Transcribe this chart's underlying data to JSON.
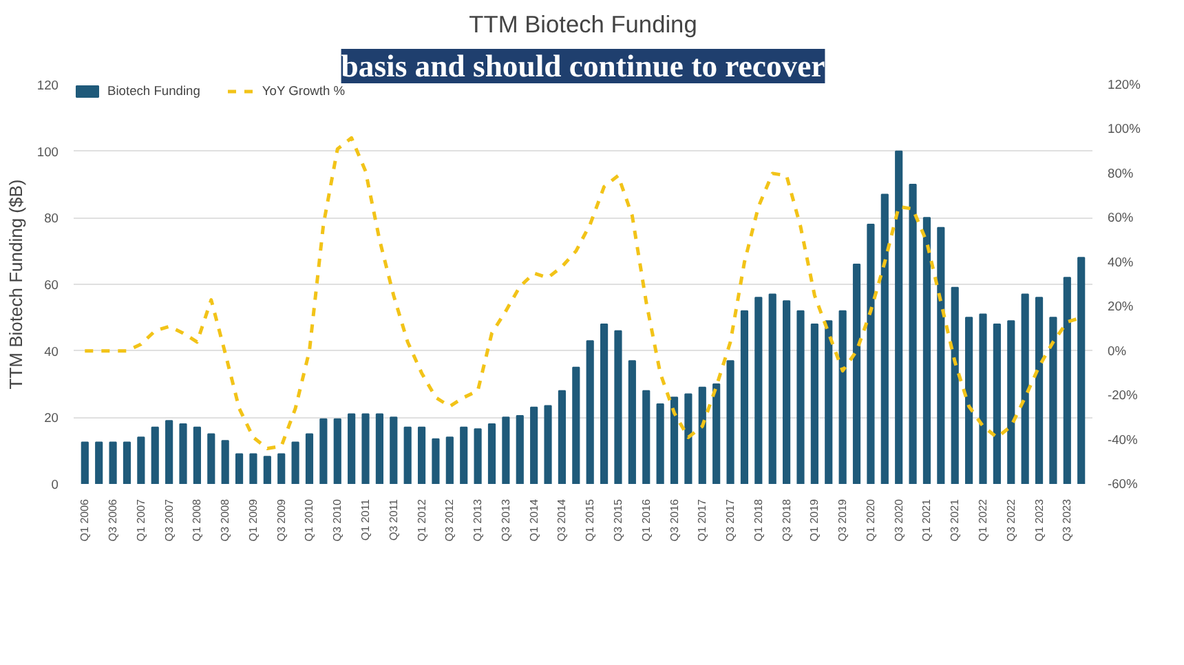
{
  "chart_data": {
    "type": "bar",
    "title": "TTM Biotech Funding",
    "annotations": [
      "basis and should continue to recover"
    ],
    "ylabel": "TTM Biotech Funding ($B)",
    "categories": [
      "Q1 2006",
      null,
      "Q3 2006",
      null,
      "Q1 2007",
      null,
      "Q3 2007",
      null,
      "Q1 2008",
      null,
      "Q3 2008",
      null,
      "Q1 2009",
      null,
      "Q3 2009",
      null,
      "Q1 2010",
      null,
      "Q3 2010",
      null,
      "Q1 2011",
      null,
      "Q3 2011",
      null,
      "Q1 2012",
      null,
      "Q3 2012",
      null,
      "Q1 2013",
      null,
      "Q3 2013",
      null,
      "Q1 2014",
      null,
      "Q3 2014",
      null,
      "Q1 2015",
      null,
      "Q3 2015",
      null,
      "Q1 2016",
      null,
      "Q3 2016",
      null,
      "Q1 2017",
      null,
      "Q3 2017",
      null,
      "Q1 2018",
      null,
      "Q3 2018",
      null,
      "Q1 2019",
      null,
      "Q3 2019",
      null,
      "Q1 2020",
      null,
      "Q3 2020",
      null,
      "Q1 2021",
      null,
      "Q3 2021",
      null,
      "Q1 2022",
      null,
      "Q3 2022",
      null,
      "Q1 2023",
      null,
      "Q3 2023",
      null
    ],
    "series": [
      {
        "name": "Biotech Funding",
        "color": "#1f5a7a",
        "values": [
          12.5,
          12.5,
          12.5,
          12.5,
          14,
          17,
          19,
          18,
          17,
          15,
          13,
          9,
          9,
          8.2,
          9,
          12.5,
          15,
          19.5,
          19.5,
          21,
          21,
          21,
          20,
          17,
          17,
          13.5,
          14,
          17,
          16.5,
          18,
          20,
          20.5,
          23,
          23.5,
          28,
          35,
          43,
          48,
          46,
          37,
          28,
          24,
          26,
          27,
          29,
          30,
          37,
          52,
          56,
          57,
          55,
          52,
          48,
          49,
          52,
          66,
          78,
          87,
          100,
          90,
          80,
          77,
          59,
          50,
          51,
          48,
          49,
          57,
          56,
          50,
          62,
          68
        ]
      },
      {
        "name": "YoY Growth %",
        "type": "line",
        "axis": "y2",
        "color": "#f2c318",
        "line_style": "dashed",
        "values": [
          0,
          0,
          0,
          0,
          3,
          9,
          11,
          8,
          4,
          23,
          -1,
          -26,
          -39,
          -44,
          -43,
          -26,
          0,
          57,
          91,
          96,
          81,
          50,
          25,
          4,
          -10,
          -21,
          -25,
          -21,
          -18,
          8,
          18,
          29,
          35,
          33,
          38,
          45,
          57,
          74,
          79,
          61,
          22,
          -10,
          -28,
          -39,
          -34,
          -16,
          4,
          40,
          65,
          80,
          79,
          56,
          25,
          8,
          -9,
          0,
          18,
          40,
          65,
          64,
          49,
          22,
          -5,
          -25,
          -34,
          -39,
          -34,
          -21,
          -7,
          4,
          13,
          15
        ]
      }
    ],
    "ylim": [
      0,
      120
    ],
    "yticks": [
      0,
      20,
      40,
      60,
      80,
      100,
      120
    ],
    "y2lim": [
      -60,
      120
    ],
    "y2ticks": [
      {
        "value": -60,
        "label": "-60%"
      },
      {
        "value": -40,
        "label": "-40%"
      },
      {
        "value": -20,
        "label": "-20%"
      },
      {
        "value": 0,
        "label": "0%"
      },
      {
        "value": 20,
        "label": "20%"
      },
      {
        "value": 40,
        "label": "40%"
      },
      {
        "value": 60,
        "label": "60%"
      },
      {
        "value": 80,
        "label": "80%"
      },
      {
        "value": 100,
        "label": "100%"
      },
      {
        "value": 120,
        "label": "120%"
      }
    ],
    "grid": "y",
    "legend": "top left"
  }
}
